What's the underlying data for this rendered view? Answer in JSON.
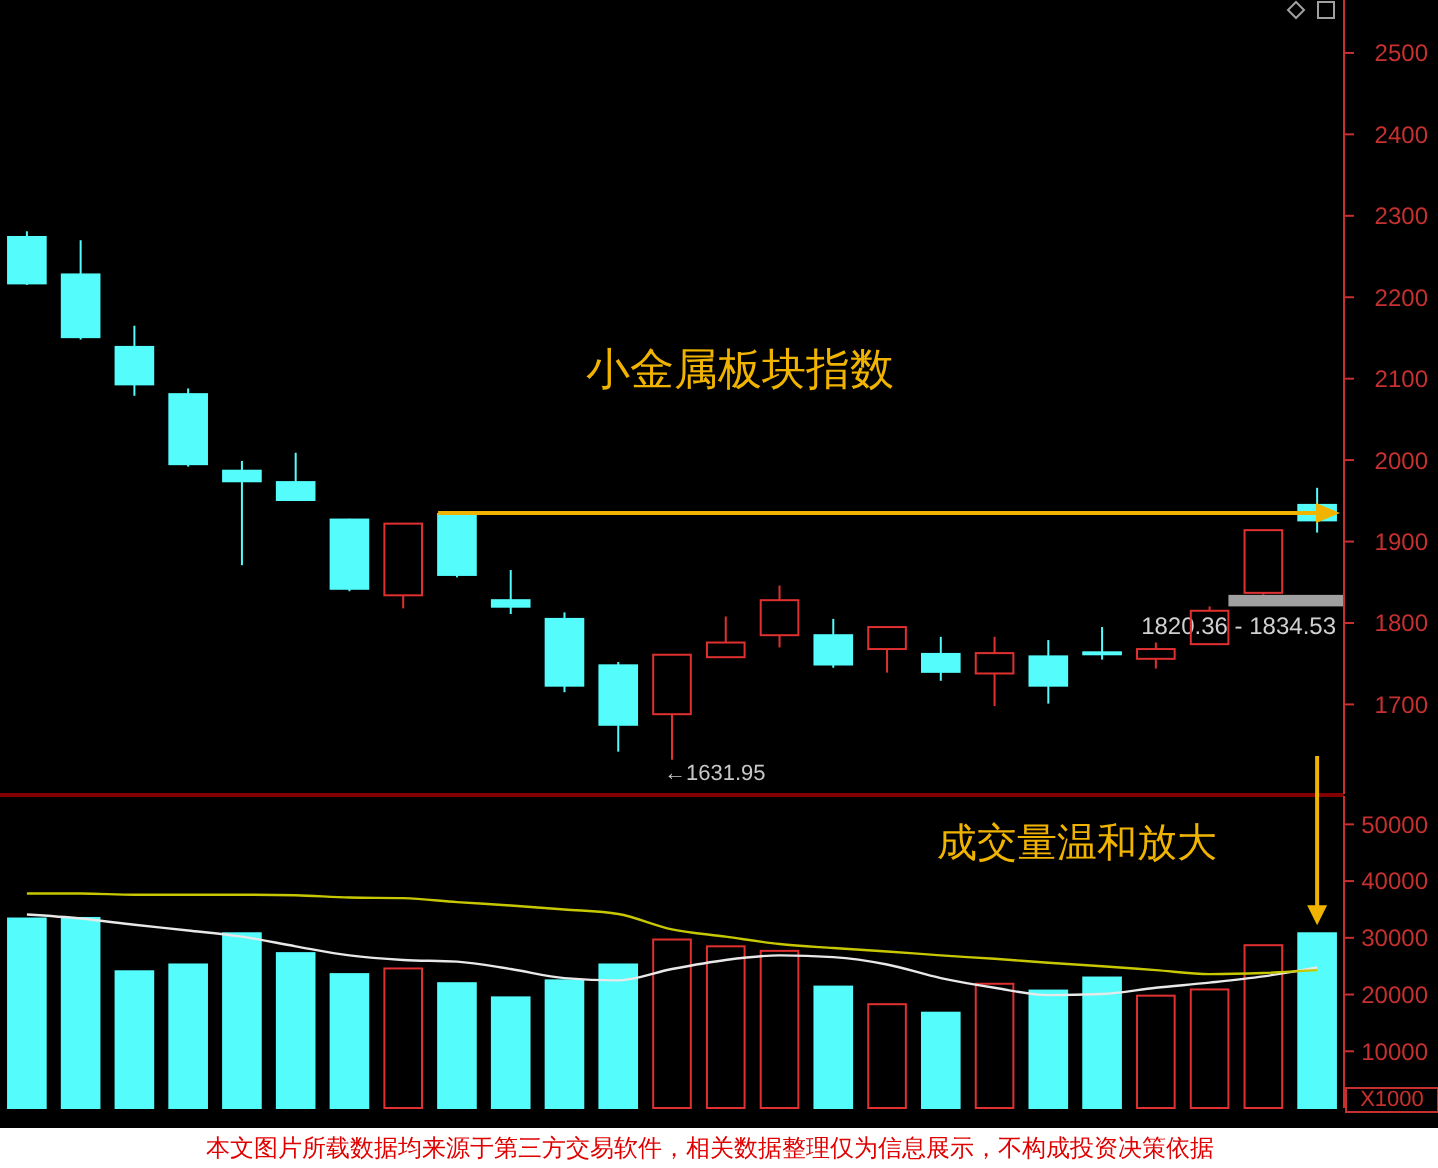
{
  "chart_data": [
    {
      "type": "candlestick",
      "title": "小金属板块指数",
      "categories": [
        null,
        null,
        null,
        null,
        null,
        null,
        null,
        null,
        null,
        null,
        null,
        null,
        null,
        null,
        null,
        null,
        null,
        null,
        null,
        null,
        null,
        null,
        null,
        null,
        null
      ],
      "ohlc": [
        [
          2274,
          2281,
          2215,
          2217
        ],
        [
          2228,
          2270,
          2148,
          2151
        ],
        [
          2139,
          2165,
          2079,
          2093
        ],
        [
          2081,
          2088,
          1992,
          1995
        ],
        [
          1987,
          1999,
          1871,
          1974
        ],
        [
          1973,
          2009,
          1950,
          1951
        ],
        [
          1927,
          1928,
          1839,
          1842
        ],
        [
          1834,
          1922,
          1818,
          1922
        ],
        [
          1934,
          1935,
          1856,
          1859
        ],
        [
          1828,
          1865,
          1811,
          1820
        ],
        [
          1805,
          1813,
          1715,
          1723
        ],
        [
          1748,
          1752,
          1642,
          1675
        ],
        [
          1688,
          1761,
          1631.95,
          1761
        ],
        [
          1758,
          1808,
          1758,
          1776
        ],
        [
          1785,
          1846,
          1770,
          1828
        ],
        [
          1785,
          1805,
          1745,
          1749
        ],
        [
          1768,
          1795,
          1739,
          1795
        ],
        [
          1762,
          1783,
          1729,
          1740
        ],
        [
          1738,
          1783,
          1698,
          1763
        ],
        [
          1759,
          1779,
          1701,
          1723
        ],
        [
          1764,
          1795,
          1755,
          1762
        ],
        [
          1756,
          1776,
          1744,
          1768
        ],
        [
          1774,
          1820.36,
          1774,
          1815
        ],
        [
          1837,
          1914,
          1834.53,
          1914
        ],
        [
          1945,
          1966,
          1911,
          1926
        ]
      ],
      "colors": [
        "#54fcfc",
        "#54fcfc",
        "#54fcfc",
        "#54fcfc",
        "#54fcfc",
        "#54fcfc",
        "#54fcfc",
        "#e03030",
        "#54fcfc",
        "#54fcfc",
        "#54fcfc",
        "#54fcfc",
        "#e03030",
        "#e03030",
        "#e03030",
        "#54fcfc",
        "#e03030",
        "#54fcfc",
        "#e03030",
        "#54fcfc",
        "#54fcfc",
        "#e03030",
        "#e03030",
        "#e03030",
        "#54fcfc"
      ],
      "ylim": [
        1590,
        2565
      ],
      "yticks": [
        1700,
        1800,
        1900,
        2000,
        2100,
        2200,
        2300,
        2400,
        2500
      ],
      "annotations": [
        "←1631.95"
      ],
      "ref_lines": [
        {
          "axis": "y",
          "value": 1935,
          "color": "#f0b400"
        }
      ],
      "bands": [
        {
          "axis": "y",
          "from": 1820.36,
          "to": 1834.53,
          "label": "1820.36 - 1834.53",
          "color": "#a0a0a0"
        }
      ]
    },
    {
      "type": "bar",
      "categories": [
        null,
        null,
        null,
        null,
        null,
        null,
        null,
        null,
        null,
        null,
        null,
        null,
        null,
        null,
        null,
        null,
        null,
        null,
        null,
        null,
        null,
        null,
        null,
        null,
        null
      ],
      "series": [
        {
          "colors": [
            "#54fcfc",
            "#54fcfc",
            "#54fcfc",
            "#54fcfc",
            "#54fcfc",
            "#54fcfc",
            "#54fcfc",
            "#e03030",
            "#54fcfc",
            "#54fcfc",
            "#54fcfc",
            "#54fcfc",
            "#e03030",
            "#e03030",
            "#e03030",
            "#54fcfc",
            "#e03030",
            "#54fcfc",
            "#e03030",
            "#54fcfc",
            "#54fcfc",
            "#e03030",
            "#e03030",
            "#e03030",
            "#54fcfc"
          ],
          "values": [
            33400,
            33500,
            24100,
            25300,
            30800,
            27300,
            23600,
            24600,
            22000,
            19500,
            22500,
            25300,
            29700,
            28500,
            27700,
            21400,
            18300,
            16800,
            21900,
            20700,
            23000,
            19800,
            20900,
            28700,
            30800
          ]
        },
        {
          "type": "line",
          "color": "#e8e8e8",
          "values": [
            34100,
            33400,
            32300,
            31300,
            30200,
            28500,
            26900,
            26100,
            25800,
            24500,
            22900,
            22500,
            24500,
            26100,
            26900,
            26600,
            25300,
            22900,
            21200,
            19900,
            20100,
            21200,
            22100,
            23200,
            24800
          ]
        },
        {
          "type": "line",
          "color": "#c8c800",
          "values": [
            37800,
            37800,
            37600,
            37600,
            37600,
            37500,
            37100,
            37000,
            36300,
            35700,
            35000,
            34200,
            31500,
            30200,
            28900,
            28200,
            27600,
            26900,
            26300,
            25600,
            25000,
            24300,
            23600,
            23800,
            24300
          ]
        }
      ],
      "ylim": [
        0,
        55000
      ],
      "yticks": [
        10000,
        20000,
        30000,
        40000,
        50000
      ],
      "ylabel": "X1000",
      "annotations": [
        "成交量温和放大",
        "本文图片所载数据均来源于第三方交易软件，相关数据整理仅为信息展示，不构成投资决策依据"
      ]
    }
  ]
}
